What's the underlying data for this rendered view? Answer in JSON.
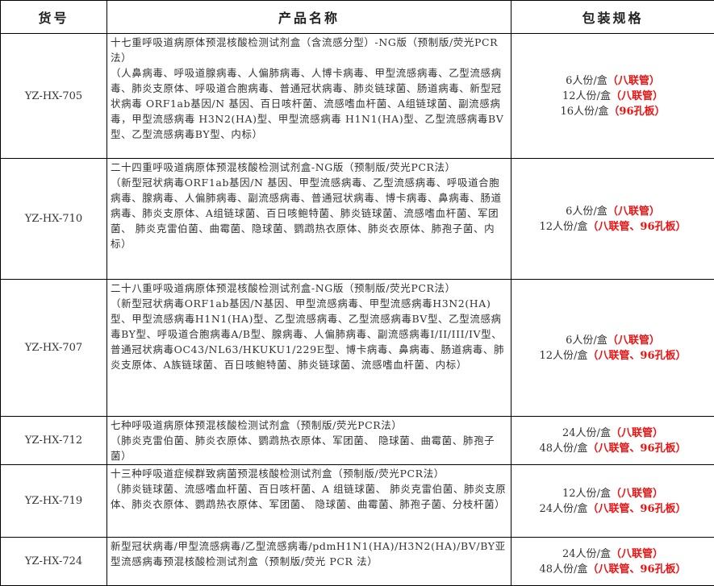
{
  "headers": {
    "code": "货号",
    "name": "产品名称",
    "pack": "包装规格"
  },
  "colors": {
    "highlight": "#f01010"
  },
  "rows": [
    {
      "code": "YZ-HX-705",
      "title": "十七重呼吸道病原体预混核酸检测试剂盒（含流感分型）-NG版（预制版/荧光PCR法）",
      "desc": "（人鼻病毒、呼吸道腺病毒、人偏肺病毒、人博卡病毒、甲型流感病毒、乙型流感病毒、肺炎支原体、呼吸道合胞病毒、普通冠状病毒、肺炎链球菌、肠道病毒、新型冠状病毒 ORF1ab基因/N 基因、百日咳杆菌、流感嗜血杆菌、A组链球菌、副流感病毒，甲型流感病毒 H3N2(HA)型、甲型流感病毒 H1N1(HA)型、乙型流感病毒BV型、乙型流感病毒BY型、内标）",
      "pack": [
        {
          "qty": "6人份/盒",
          "type": "（八联管）"
        },
        {
          "qty": "12人份/盒",
          "type": "（八联管）"
        },
        {
          "qty": "16人份/盒",
          "type": "（96孔板）"
        }
      ]
    },
    {
      "code": "YZ-HX-710",
      "title": "二十四重呼吸道病原体预混核酸检测试剂盒-NG版（预制版/荧光PCR法）",
      "desc": "（新型冠状病毒ORF1ab基因/N 基因、甲型流感病毒、乙型流感病毒、呼吸道合胞病毒、腺病毒、人偏肺病毒、副流感病毒、普通冠状病毒、博卡病毒、鼻病毒、肠道病毒、肺炎支原体、A组链球菌、百日咳鲍特菌、肺炎链球菌、流感嗜血杆菌、军团菌、 肺炎克雷伯菌、曲霉菌、隐球菌、鹦鹉热衣原体、肺炎衣原体、肺孢子菌、内标）",
      "pack": [
        {
          "qty": "6人份/盒",
          "type": "（八联管）"
        },
        {
          "qty": "12人份/盒",
          "type": "（八联管、96孔板）"
        }
      ]
    },
    {
      "code": "YZ-HX-707",
      "title": "二十八重呼吸道病原体预混核酸检测试剂盒-NG版（预制版/荧光PCR法）",
      "desc": "（新型冠状病毒ORF1ab基因/N基因、甲型流感病毒、甲型流感病毒H3N2(HA)型、甲型流感病毒H1N1(HA)型、乙型流感病毒、乙型流感病毒BV型、乙型流感病毒BY型、呼吸道合胞病毒A/B型、腺病毒、人偏肺病毒、副流感病毒I/II/III/IV型、普通冠状病毒OC43/NL63/HKUKU1/229E型、博卡病毒、鼻病毒、肠道病毒、肺炎支原体、A族链球菌、百日咳鲍特菌、肺炎链球菌、流感嗜血杆菌、内标）",
      "pack": [
        {
          "qty": "6人份/盒",
          "type": "（八联管）"
        },
        {
          "qty": "12人份/盒",
          "type": "（八联管、96孔板）"
        }
      ]
    },
    {
      "code": "YZ-HX-712",
      "title": "七种呼吸道病原体预混核酸检测试剂盒（预制版/荧光PCR法）",
      "desc": "（肺炎克雷伯菌、肺炎衣原体、鹦鹉热衣原体、军团菌、 隐球菌、曲霉菌、肺孢子菌）",
      "pack": [
        {
          "qty": "24人份/盒",
          "type": "（八联管）"
        },
        {
          "qty": "48人份/盒",
          "type": "（八联管、96孔板）"
        }
      ]
    },
    {
      "code": "YZ-HX-719",
      "title": "十三种呼吸道症候群致病菌预混核酸检测试剂盒（预制版/荧光PCR法）",
      "desc": "（肺炎链球菌、流感嗜血杆菌、百日咳杆菌、A 组链球菌、 肺炎克雷伯菌、肺炎支原体、肺炎衣原体、鹦鹉热衣原体、军团菌、 隐球菌、曲霉菌、肺孢子菌、分枝杆菌）",
      "pack": [
        {
          "qty": "12人份/盒",
          "type": "（八联管）"
        },
        {
          "qty": "24人份/盒",
          "type": "（八联管、96孔板）"
        }
      ]
    },
    {
      "code": "YZ-HX-724",
      "title": "新型冠状病毒/甲型流感病毒/乙型流感病毒/pdmH1N1(HA)/H3N2(HA)/BV/BY亚型流感病毒预混核酸检测试剂盒（预制版/荧光 PCR 法）",
      "desc": "",
      "pack": [
        {
          "qty": "24人份/盒",
          "type": "（八联管）"
        },
        {
          "qty": "48人份/盒",
          "type": "（八联管、96孔板）"
        }
      ]
    }
  ]
}
